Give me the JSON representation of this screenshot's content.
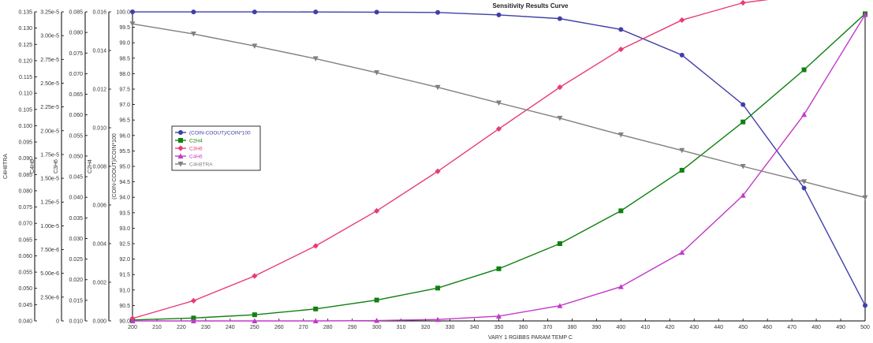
{
  "chart_data": {
    "type": "line",
    "title": "Sensitivity Results Curve",
    "xlabel": "VARY  1 RGIBBS PARAM TEMP C",
    "x": [
      200,
      225,
      250,
      275,
      300,
      325,
      350,
      375,
      400,
      425,
      450,
      475,
      500
    ],
    "xlim": [
      200,
      500
    ],
    "x_ticks": [
      200,
      210,
      220,
      230,
      240,
      250,
      260,
      270,
      280,
      290,
      300,
      310,
      320,
      330,
      340,
      350,
      360,
      370,
      380,
      390,
      400,
      410,
      420,
      430,
      440,
      450,
      460,
      470,
      480,
      490,
      500
    ],
    "grid": false,
    "legend_position": "center-left",
    "axes": [
      {
        "id": "c4h8tra",
        "label": "C4H8TRA",
        "range": [
          0.04,
          0.135
        ],
        "tick_values": [
          0.04,
          0.045,
          0.05,
          0.055,
          0.06,
          0.065,
          0.07,
          0.075,
          0.08,
          0.085,
          0.09,
          0.095,
          0.1,
          0.105,
          0.11,
          0.115,
          0.12,
          0.125,
          0.13,
          0.135
        ],
        "tick_labels": [
          "0.040",
          "0.045",
          "0.050",
          "0.055",
          "0.060",
          "0.065",
          "0.070",
          "0.075",
          "0.080",
          "0.085",
          "0.090",
          "0.095",
          "0.100",
          "0.105",
          "0.110",
          "0.115",
          "0.120",
          "0.125",
          "0.130",
          "0.135"
        ]
      },
      {
        "id": "c4h6",
        "label": "C4H6",
        "range": [
          0,
          3.25e-05
        ],
        "tick_values": [
          0,
          2.5e-06,
          5e-06,
          7.5e-06,
          1e-05,
          1.25e-05,
          1.5e-05,
          1.75e-05,
          2e-05,
          2.25e-05,
          2.5e-05,
          2.75e-05,
          3e-05,
          3.25e-05
        ],
        "tick_labels": [
          "0",
          "2.50e-6",
          "5.00e-6",
          "7.50e-6",
          "1.00e-5",
          "1.25e-5",
          "1.50e-5",
          "1.75e-5",
          "2.00e-5",
          "2.25e-5",
          "2.50e-5",
          "2.75e-5",
          "3.00e-5",
          "3.25e-5"
        ]
      },
      {
        "id": "c3h6",
        "label": "C3H6",
        "range": [
          0.01,
          0.085
        ],
        "tick_values": [
          0.01,
          0.015,
          0.02,
          0.025,
          0.03,
          0.035,
          0.04,
          0.045,
          0.05,
          0.055,
          0.06,
          0.065,
          0.07,
          0.075,
          0.08,
          0.085
        ],
        "tick_labels": [
          "0.010",
          "0.015",
          "0.020",
          "0.025",
          "0.030",
          "0.035",
          "0.040",
          "0.045",
          "0.050",
          "0.055",
          "0.060",
          "0.065",
          "0.070",
          "0.075",
          "0.080",
          "0.085"
        ]
      },
      {
        "id": "c2h4",
        "label": "C2H4",
        "range": [
          0,
          0.016
        ],
        "tick_values": [
          0,
          0.002,
          0.004,
          0.006,
          0.008,
          0.01,
          0.012,
          0.014,
          0.016
        ],
        "tick_labels": [
          "0.000",
          "0.002",
          "0.004",
          "0.006",
          "0.008",
          "0.010",
          "0.012",
          "0.014",
          "0.016"
        ]
      },
      {
        "id": "conv",
        "label": "(COIN-COOUT)/COIN*100",
        "range": [
          90,
          100
        ],
        "tick_values": [
          90,
          90.5,
          91,
          91.5,
          92,
          92.5,
          93,
          93.5,
          94,
          94.5,
          95,
          95.5,
          96,
          96.5,
          97,
          97.5,
          98,
          98.5,
          99,
          99.5,
          100
        ],
        "tick_labels": [
          "90.0",
          "90.5",
          "91.0",
          "91.5",
          "92.0",
          "92.5",
          "93.0",
          "93.5",
          "94.0",
          "94.5",
          "95.0",
          "95.5",
          "96.0",
          "96.5",
          "97.0",
          "97.5",
          "98.0",
          "98.5",
          "99.0",
          "99.5",
          "100.0"
        ]
      }
    ],
    "series": [
      {
        "name": "(COIN-COOUT)/COIN*100",
        "axis": "conv",
        "color": "#3f3fa8",
        "marker": "circle",
        "values": [
          99.999,
          99.998,
          99.998,
          99.996,
          99.99,
          99.98,
          99.9,
          99.78,
          99.43,
          98.6,
          97.0,
          94.3,
          90.5
        ]
      },
      {
        "name": "C2H4",
        "axis": "c2h4",
        "color": "#108010",
        "marker": "square",
        "values": [
          5e-05,
          0.00015,
          0.00032,
          0.00062,
          0.00108,
          0.0017,
          0.0027,
          0.004,
          0.0057,
          0.0078,
          0.0103,
          0.013,
          0.0159
        ]
      },
      {
        "name": "C3H6",
        "axis": "c3h6",
        "color": "#e83a7a",
        "marker": "diamond",
        "values": [
          0.0106,
          0.0149,
          0.0209,
          0.0282,
          0.0367,
          0.0463,
          0.0566,
          0.0667,
          0.0759,
          0.083,
          0.0872,
          0.0891,
          0.0886
        ]
      },
      {
        "name": "C4H6",
        "axis": "c4h6",
        "color": "#c23ac8",
        "marker": "triangle-up",
        "values": [
          0.0,
          0.0,
          0.0,
          0.0,
          4e-08,
          1.5e-07,
          5e-07,
          1.6e-06,
          3.6e-06,
          7.2e-06,
          1.32e-05,
          2.17e-05,
          3.22e-05
        ]
      },
      {
        "name": "C4H8TRA",
        "axis": "c4h8tra",
        "color": "#808080",
        "marker": "triangle-down",
        "values": [
          0.1313,
          0.1282,
          0.1245,
          0.1206,
          0.1163,
          0.1118,
          0.107,
          0.1023,
          0.0972,
          0.0924,
          0.0875,
          0.0828,
          0.0779
        ]
      }
    ]
  }
}
